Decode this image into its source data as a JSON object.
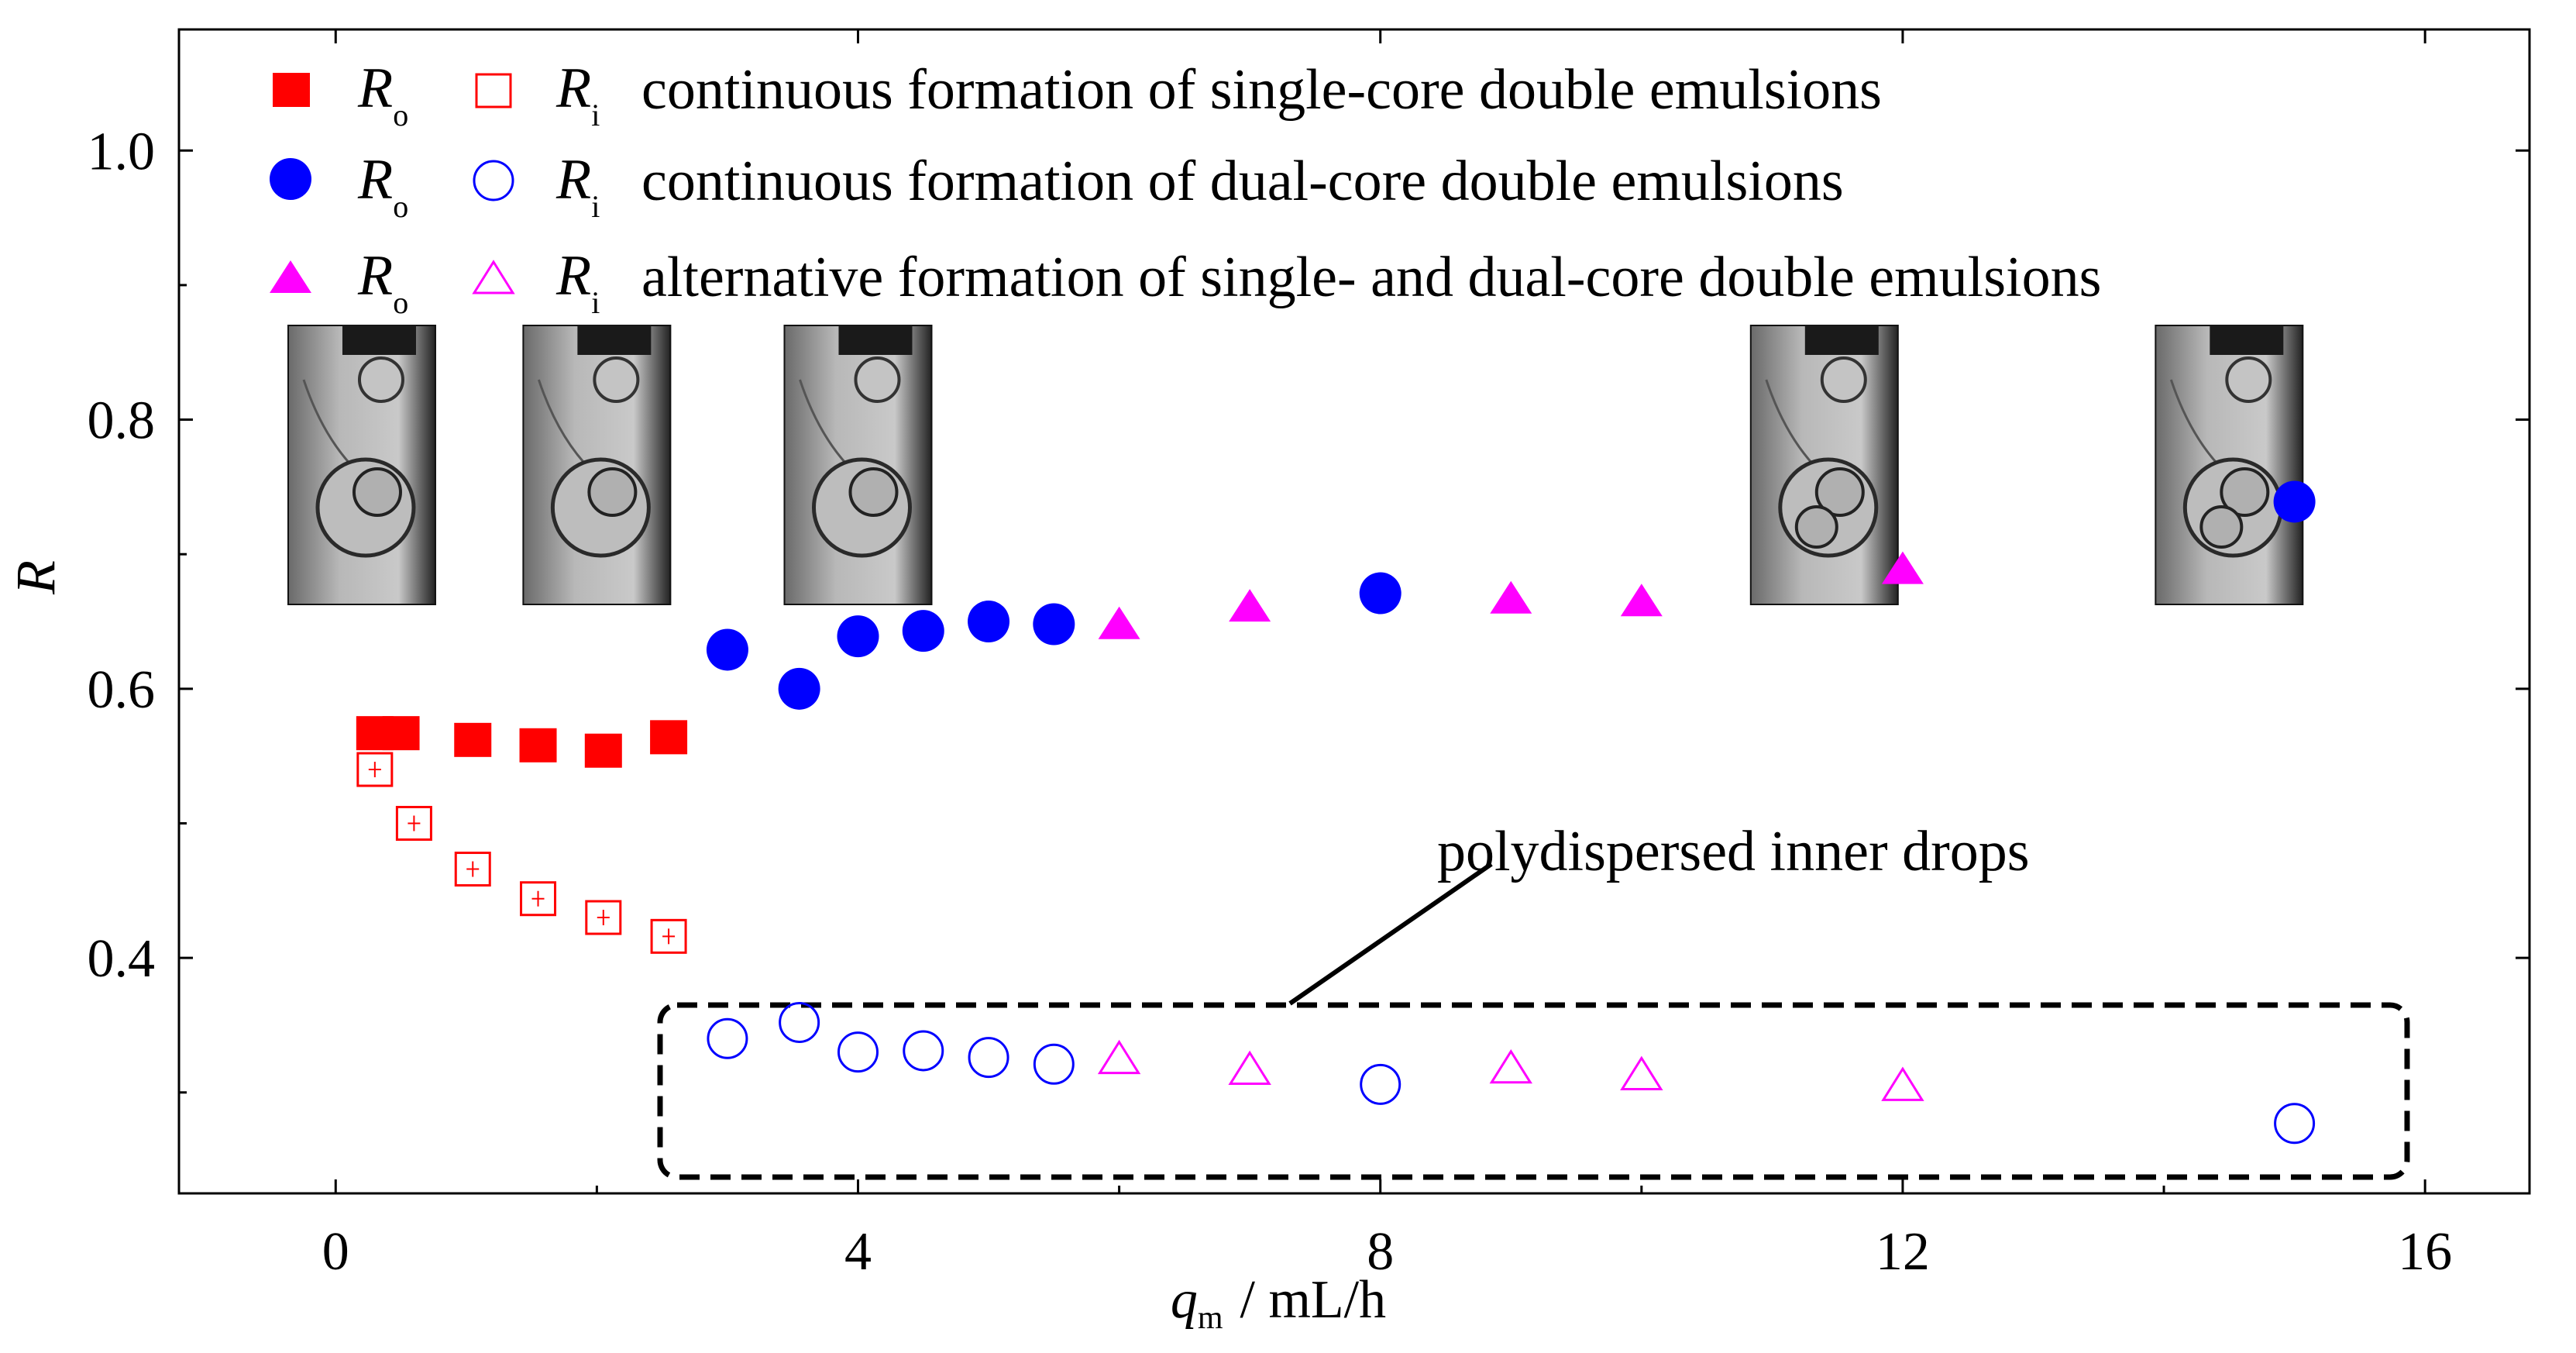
{
  "chart_data": {
    "type": "scatter",
    "title": "",
    "xlabel": {
      "symbol": "q",
      "subscript": "m",
      "unit": "/ mL/h"
    },
    "ylabel": "R",
    "xlim": [
      -1.2,
      16.8
    ],
    "ylim": [
      0.225,
      1.09
    ],
    "xticks": [
      0,
      4,
      8,
      12,
      16
    ],
    "xtick_labels": [
      "0",
      "4",
      "8",
      "12",
      "16"
    ],
    "yticks": [
      0.4,
      0.6,
      0.8,
      1.0
    ],
    "ytick_labels": [
      "0.4",
      "0.6",
      "0.8",
      "1.0"
    ],
    "grid": false,
    "legend_position": "top-left",
    "legend": [
      {
        "outer_symbol": "R",
        "outer_sub": "o",
        "inner_symbol": "R",
        "inner_sub": "i",
        "label": "continuous formation of single-core double emulsions",
        "marker": "square",
        "color": "#ff0000"
      },
      {
        "outer_symbol": "R",
        "outer_sub": "o",
        "inner_symbol": "R",
        "inner_sub": "i",
        "label": "continuous formation of dual-core double emulsions",
        "marker": "circle",
        "color": "#0000ff"
      },
      {
        "outer_symbol": "R",
        "outer_sub": "o",
        "inner_symbol": "R",
        "inner_sub": "i",
        "label": "alternative formation of single- and dual-core double emulsions",
        "marker": "triangle",
        "color": "#ff00ff"
      }
    ],
    "series": [
      {
        "name": "Ro single-core",
        "marker": "square",
        "filled": true,
        "color": "#ff0000",
        "x": [
          0.3,
          0.5,
          1.05,
          1.55,
          2.05,
          2.55
        ],
        "y": [
          0.567,
          0.567,
          0.562,
          0.558,
          0.554,
          0.564
        ]
      },
      {
        "name": "Ri single-core",
        "marker": "square",
        "filled": false,
        "color": "#ff0000",
        "x": [
          0.3,
          0.6,
          1.05,
          1.55,
          2.05,
          2.55
        ],
        "y": [
          0.54,
          0.5,
          0.466,
          0.444,
          0.43,
          0.416
        ]
      },
      {
        "name": "Ro dual-core",
        "marker": "circle",
        "filled": true,
        "color": "#0000ff",
        "x": [
          3.0,
          3.55,
          4.0,
          4.5,
          5.0,
          5.5,
          8.0,
          15.0
        ],
        "y": [
          0.629,
          0.6,
          0.639,
          0.643,
          0.65,
          0.648,
          0.671,
          0.739
        ]
      },
      {
        "name": "Ri dual-core",
        "marker": "circle",
        "filled": false,
        "color": "#0000ff",
        "x": [
          3.0,
          3.55,
          4.0,
          4.5,
          5.0,
          5.5,
          8.0,
          15.0
        ],
        "y": [
          0.34,
          0.352,
          0.33,
          0.331,
          0.326,
          0.321,
          0.306,
          0.277
        ]
      },
      {
        "name": "Ro alternative",
        "marker": "triangle",
        "filled": true,
        "color": "#ff00ff",
        "x": [
          6.0,
          7.0,
          9.0,
          10.0,
          12.0
        ],
        "y": [
          0.649,
          0.662,
          0.668,
          0.666,
          0.69
        ]
      },
      {
        "name": "Ri alternative",
        "marker": "triangle",
        "filled": false,
        "color": "#ff00ff",
        "x": [
          6.0,
          7.0,
          9.0,
          10.0,
          12.0
        ],
        "y": [
          0.326,
          0.318,
          0.319,
          0.314,
          0.306
        ]
      }
    ],
    "annotations": [
      {
        "text": "polydispersed inner drops",
        "kind": "dashed-box-callout",
        "box_x": [
          2.65,
          15.85
        ],
        "box_y": [
          0.26,
          0.38
        ]
      }
    ],
    "inset_images": [
      {
        "name": "single-core-drop-photo",
        "at_x": 0.2
      },
      {
        "name": "single-core-drop-photo",
        "at_x": 2.0
      },
      {
        "name": "single-core-drop-photo",
        "at_x": 4.0
      },
      {
        "name": "dual-core-drop-photo",
        "at_x": 11.4
      },
      {
        "name": "dual-core-drop-photo",
        "at_x": 14.5
      }
    ]
  }
}
